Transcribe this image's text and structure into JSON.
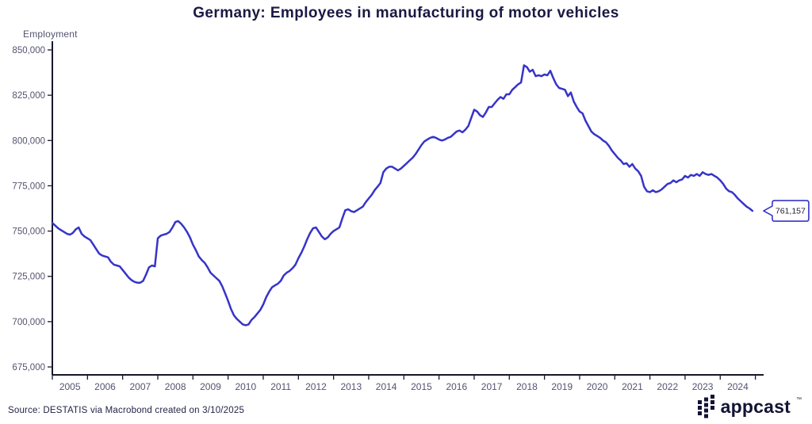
{
  "header": {
    "title": "Germany: Employees in manufacturing of motor vehicles"
  },
  "chart_data": {
    "type": "line",
    "title": "Germany: Employees in manufacturing of motor vehicles",
    "ylabel": "Employment",
    "xlabel": "",
    "ylim": [
      675000,
      850000
    ],
    "yticks": [
      675000,
      700000,
      725000,
      750000,
      775000,
      800000,
      825000,
      850000
    ],
    "ytick_labels": [
      "675,000",
      "700,000",
      "725,000",
      "750,000",
      "775,000",
      "800,000",
      "825,000",
      "850,000"
    ],
    "xtick_labels": [
      "2005",
      "2006",
      "2007",
      "2008",
      "2009",
      "2010",
      "2011",
      "2012",
      "2013",
      "2014",
      "2015",
      "2016",
      "2017",
      "2018",
      "2019",
      "2020",
      "2021",
      "2022",
      "2023",
      "2024"
    ],
    "x_start": "2005-01",
    "x_end": "2024-12",
    "frequency": "monthly",
    "grid": false,
    "legend_position": "none",
    "line_color": "#3634C8",
    "axis_color": "#17172B",
    "tick_label_color": "#53536F",
    "end_label": "761,157",
    "last_value": 761157,
    "series": [
      {
        "name": "Employees in manufacturing of motor vehicles",
        "values": [
          754500,
          753000,
          751500,
          750500,
          749500,
          748500,
          748000,
          749000,
          751000,
          752000,
          748500,
          747000,
          746000,
          745000,
          742500,
          740000,
          737500,
          736500,
          736000,
          735500,
          733000,
          731500,
          731000,
          730500,
          728500,
          726500,
          724500,
          723000,
          722000,
          721500,
          721500,
          722500,
          726000,
          730000,
          731000,
          730500,
          746000,
          747500,
          748000,
          748500,
          749500,
          752000,
          755000,
          755500,
          754000,
          752000,
          749500,
          746500,
          742500,
          739500,
          736000,
          734000,
          732500,
          730000,
          727000,
          725500,
          724000,
          722500,
          719500,
          715500,
          711500,
          707000,
          703500,
          701500,
          700000,
          698500,
          698000,
          698500,
          701000,
          702500,
          704500,
          706500,
          709500,
          713500,
          716500,
          719000,
          720000,
          721000,
          722500,
          725500,
          727000,
          728000,
          729500,
          731500,
          735000,
          738000,
          741500,
          745500,
          749000,
          751500,
          752000,
          749500,
          747000,
          745500,
          746500,
          748500,
          750000,
          751000,
          752000,
          757000,
          761500,
          762000,
          761000,
          760500,
          761500,
          762500,
          763500,
          766000,
          768000,
          770000,
          772500,
          774500,
          776500,
          782500,
          784500,
          785500,
          785500,
          784500,
          783500,
          784500,
          786000,
          787500,
          789000,
          790500,
          792500,
          795000,
          797500,
          799500,
          800500,
          801500,
          802000,
          801500,
          800500,
          800000,
          800500,
          801500,
          802000,
          803500,
          805000,
          805500,
          804500,
          806000,
          808000,
          812500,
          817000,
          816000,
          814000,
          813000,
          815500,
          818500,
          818500,
          820500,
          822500,
          824000,
          823000,
          825500,
          825500,
          828000,
          829500,
          831000,
          832000,
          841500,
          840500,
          838000,
          839000,
          835500,
          836000,
          835500,
          836500,
          836000,
          838500,
          834500,
          831000,
          829000,
          828500,
          828000,
          824500,
          826500,
          821500,
          818500,
          816000,
          815000,
          811000,
          808000,
          805000,
          803500,
          802500,
          801500,
          800000,
          799000,
          797000,
          794500,
          792500,
          790500,
          789000,
          787000,
          787500,
          785500,
          787000,
          784500,
          783000,
          780500,
          774500,
          772000,
          771500,
          772500,
          771500,
          772000,
          773000,
          774500,
          776000,
          776500,
          778000,
          777000,
          778000,
          778500,
          780500,
          779500,
          781000,
          780500,
          781500,
          780500,
          782500,
          781500,
          781000,
          781500,
          780500,
          779500,
          778000,
          776000,
          773500,
          772000,
          771500,
          770000,
          768000,
          766500,
          765000,
          763500,
          762500,
          761157
        ]
      }
    ]
  },
  "footer": {
    "source": "Source: DESTATIS via Macrobond created on 3/10/2025",
    "logo_text": "appcast",
    "logo_tm": "™"
  }
}
